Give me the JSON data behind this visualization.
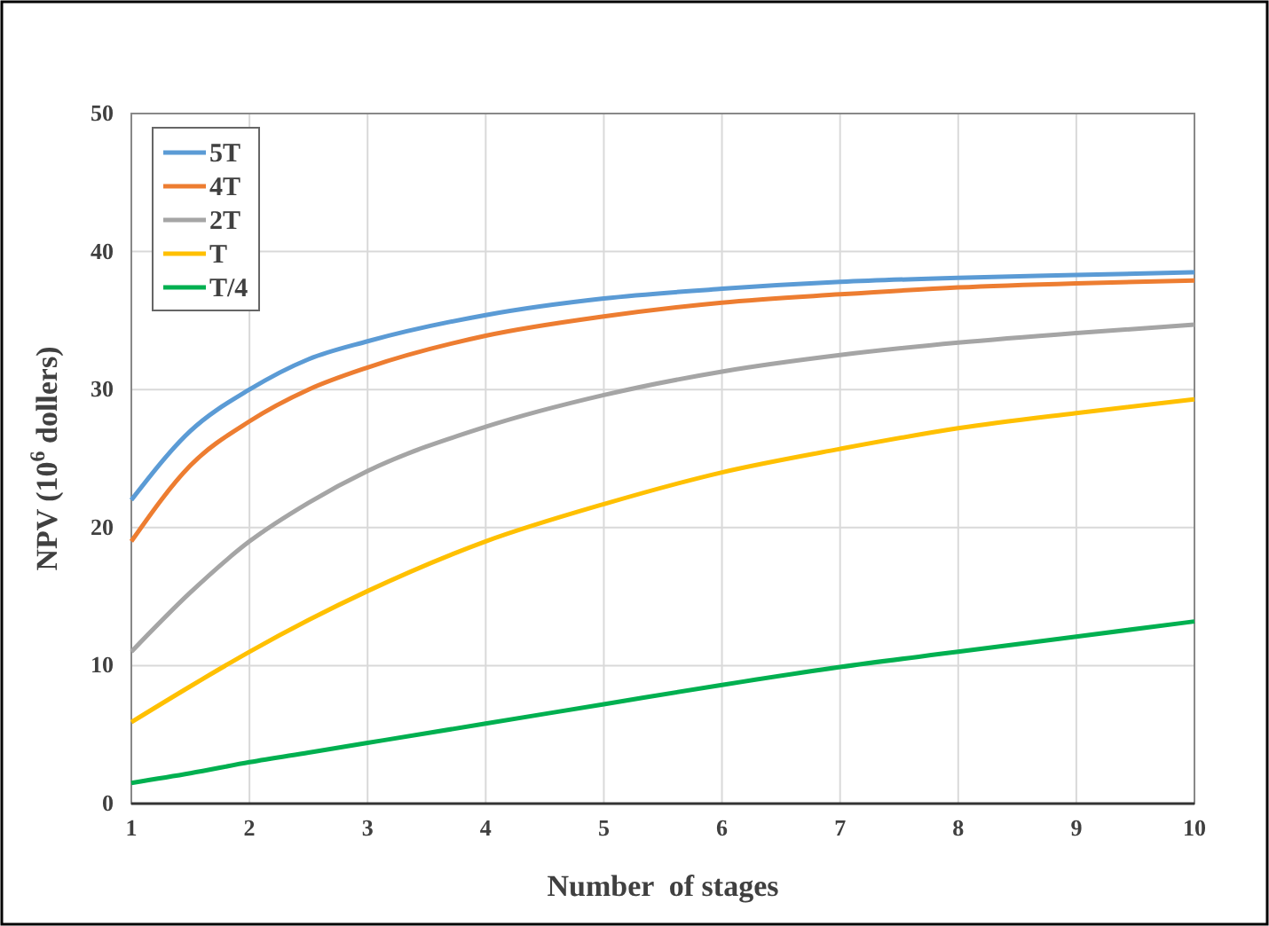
{
  "chart_data": {
    "type": "line",
    "xlabel": "Number  of stages",
    "ylabel": "NPV (10$^{6}$ dollers)",
    "x": [
      1,
      1.5,
      2,
      2.5,
      3,
      4,
      5,
      6,
      7,
      8,
      9,
      10
    ],
    "xlim": [
      1,
      10
    ],
    "xticks": [
      1,
      2,
      3,
      4,
      5,
      6,
      7,
      8,
      9,
      10
    ],
    "ylim": [
      0,
      50
    ],
    "yticks": [
      0,
      10,
      20,
      30,
      40,
      50
    ],
    "grid": true,
    "legend": "top left",
    "marker": "none",
    "line_style": "solid",
    "series": [
      {
        "name": "5T",
        "color": "#5b9bd5",
        "values": [
          22,
          27,
          30,
          32.2,
          33.5,
          35.4,
          36.6,
          37.3,
          37.8,
          38.1,
          38.3,
          38.5
        ]
      },
      {
        "name": "4T",
        "color": "#ed7d31",
        "values": [
          19,
          24.5,
          27.7,
          30,
          31.6,
          33.9,
          35.3,
          36.3,
          36.9,
          37.4,
          37.7,
          37.9
        ]
      },
      {
        "name": "2T",
        "color": "#a5a5a5",
        "values": [
          11,
          15.3,
          19,
          21.8,
          24.1,
          27.3,
          29.6,
          31.3,
          32.5,
          33.4,
          34.1,
          34.7
        ]
      },
      {
        "name": "T",
        "color": "#ffc000",
        "values": [
          5.9,
          8.5,
          11,
          13.3,
          15.4,
          19,
          21.7,
          24,
          25.7,
          27.2,
          28.3,
          29.3
        ]
      },
      {
        "name": "T/4",
        "color": "#00b050",
        "values": [
          1.5,
          2.2,
          3,
          3.7,
          4.4,
          5.8,
          7.2,
          8.6,
          9.9,
          11,
          12.1,
          13.2
        ]
      }
    ]
  }
}
